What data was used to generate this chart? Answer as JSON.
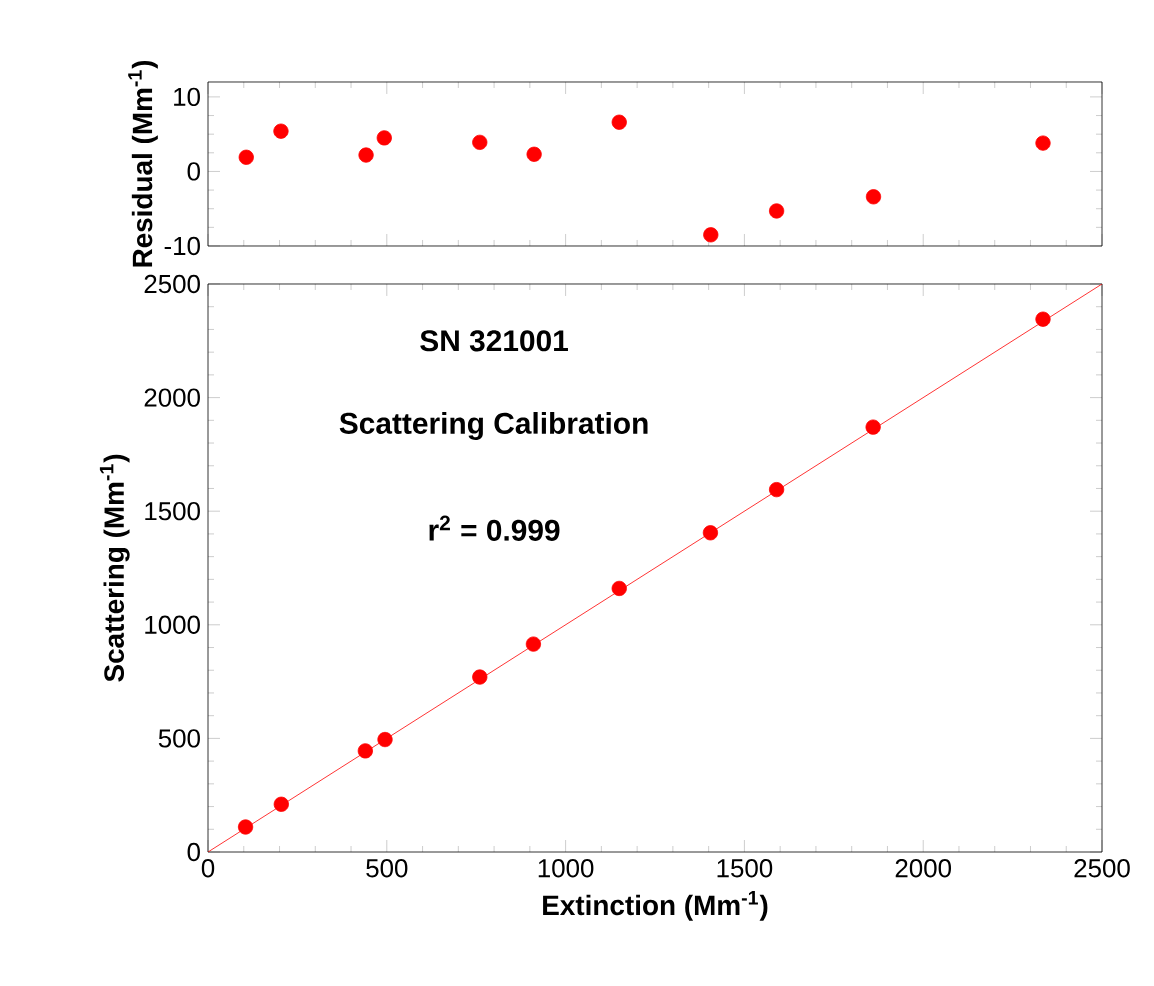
{
  "chart_data": [
    {
      "type": "scatter",
      "ylabel": "Residual (Mm$^{-1}$)",
      "series": [
        {
          "color": "#ff0000",
          "marker": "circle",
          "x": [
            107,
            204,
            442,
            493,
            760,
            912,
            1150,
            1406,
            1590,
            1861,
            2335
          ],
          "values": [
            1.9,
            5.4,
            2.2,
            4.5,
            3.9,
            2.3,
            6.6,
            -8.5,
            -5.3,
            -3.4,
            3.8
          ]
        }
      ],
      "xlim": [
        0,
        2500
      ],
      "xticks": [
        0,
        500,
        1000,
        1500,
        2000,
        2500
      ],
      "ylim": [
        -10,
        12
      ],
      "yticks": [
        -10,
        0,
        10
      ],
      "tick_labels": "y",
      "grid": false
    },
    {
      "type": "scatter",
      "xlabel": "Extinction (Mm$^{-1}$)",
      "ylabel": "Scattering (Mm$^{-1}$)",
      "annotations": [
        "SN 321001",
        "Scattering Calibration",
        "r$^{2}$ = 0.999"
      ],
      "series": [
        {
          "color": "#ff0000",
          "marker": "circle",
          "x": [
            105,
            205,
            440,
            495,
            760,
            910,
            1150,
            1405,
            1590,
            1860,
            2335
          ],
          "values": [
            110,
            210,
            445,
            495,
            770,
            915,
            1160,
            1405,
            1595,
            1870,
            2345
          ]
        },
        {
          "type": "line",
          "color": "#ff0000",
          "marker": "none",
          "x": [
            0,
            2500
          ],
          "values": [
            0,
            2500
          ]
        }
      ],
      "xlim": [
        0,
        2500
      ],
      "xticks": [
        0,
        500,
        1000,
        1500,
        2000,
        2500
      ],
      "ylim": [
        0,
        2500
      ],
      "yticks": [
        0,
        500,
        1000,
        1500,
        2000,
        2500
      ],
      "grid": false
    }
  ]
}
